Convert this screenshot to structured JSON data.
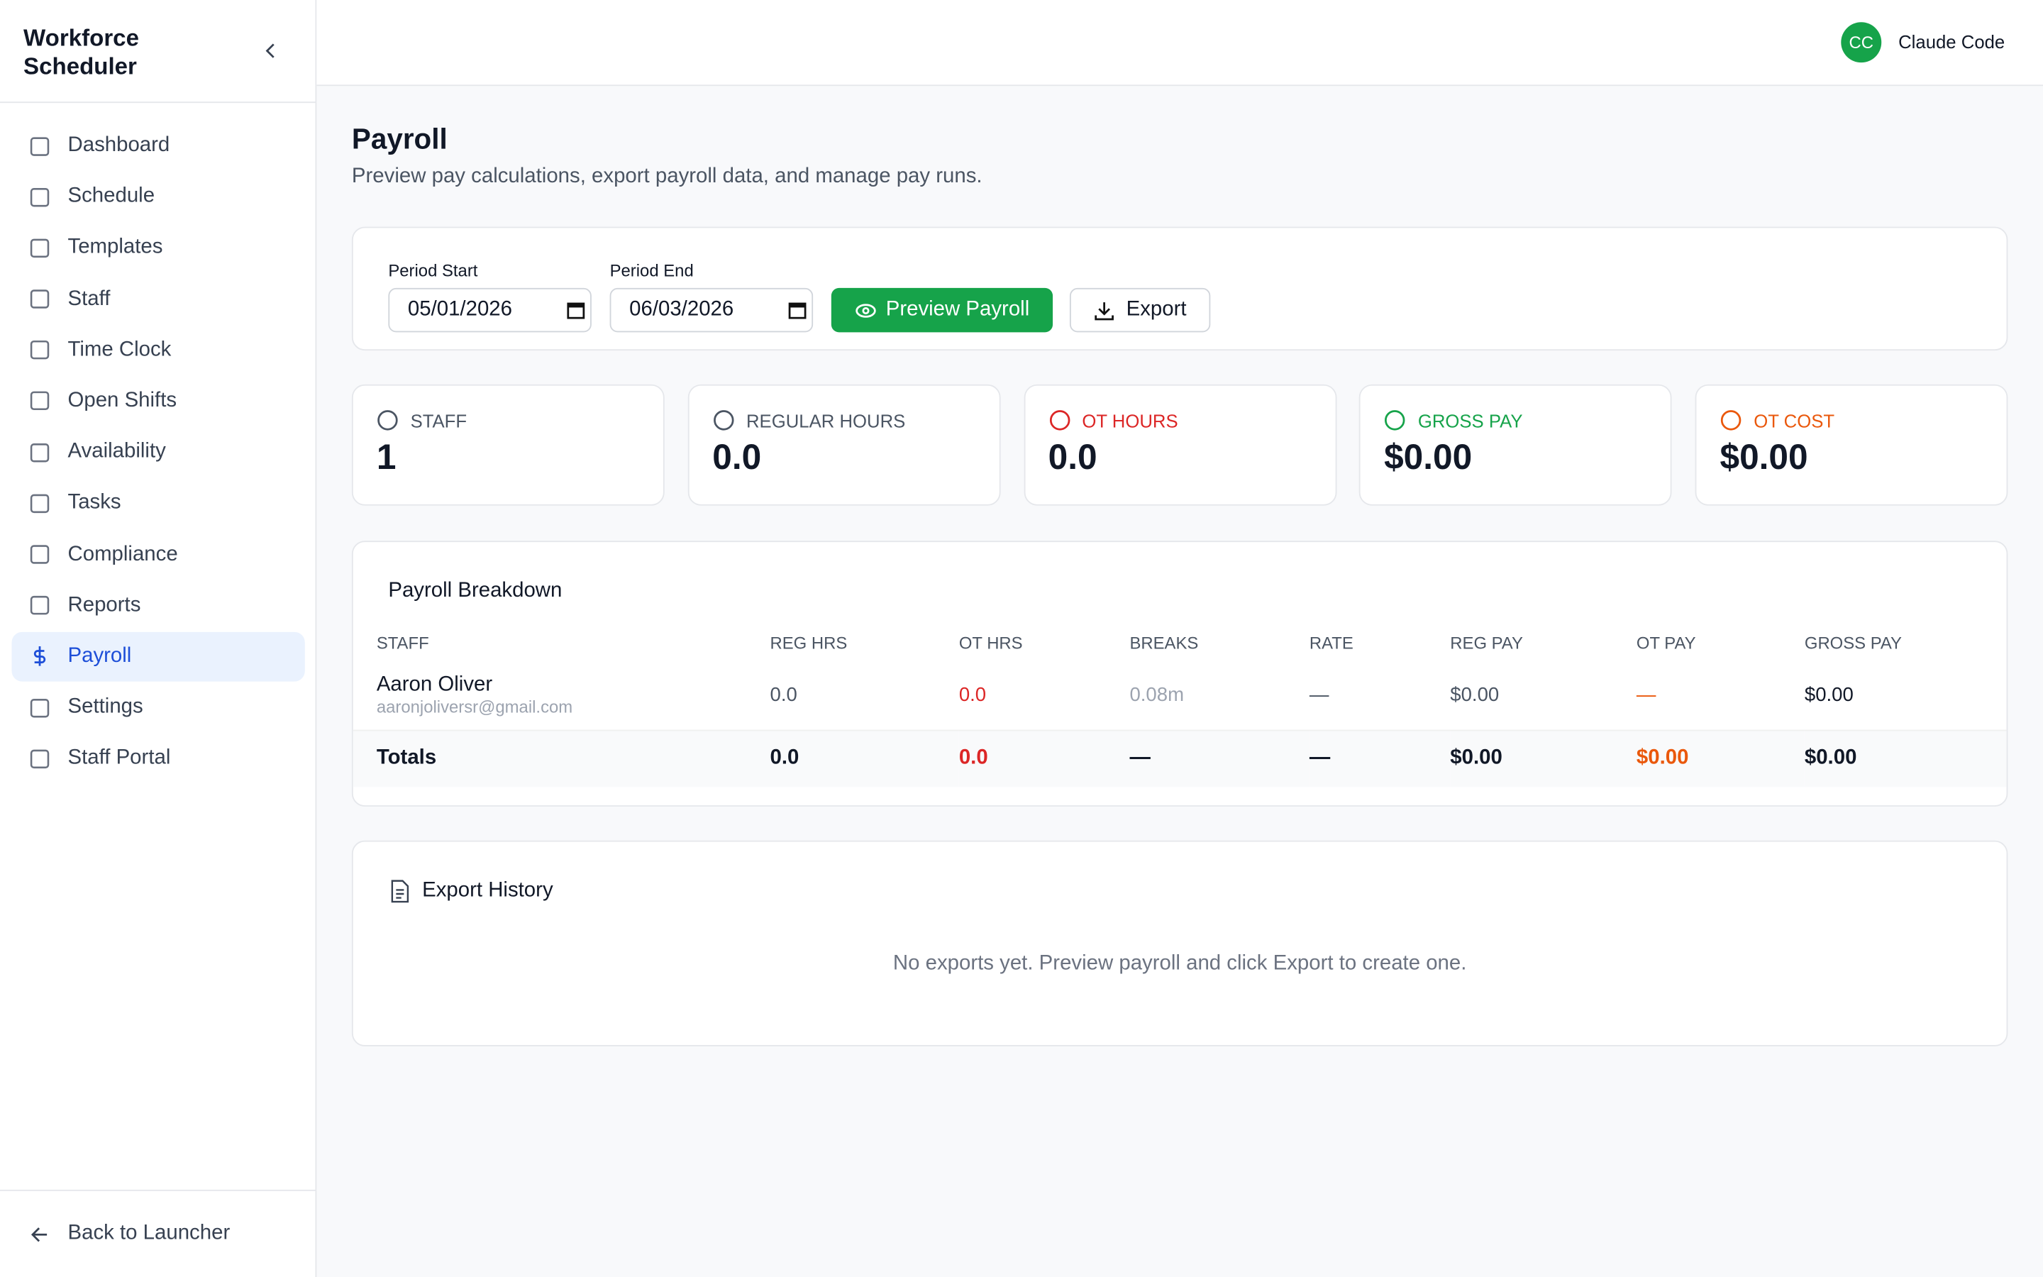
{
  "sidebar": {
    "title": "Workforce Scheduler",
    "nav": [
      "Dashboard",
      "Schedule",
      "Templates",
      "Staff",
      "Time Clock",
      "Open Shifts",
      "Availability",
      "Tasks",
      "Compliance",
      "Reports",
      "Payroll",
      "Settings",
      "Staff Portal"
    ],
    "footer": "Back to Launcher"
  },
  "header": {
    "avatar": "CC",
    "user": "Claude Code"
  },
  "page": {
    "title": "Payroll",
    "subtitle": "Preview pay calculations, export payroll data, and manage pay runs."
  },
  "filters": {
    "period_start_label": "Period Start",
    "period_start": "05/01/2026",
    "period_end_label": "Period End",
    "period_end": "06/03/2026",
    "preview_button": "Preview Payroll",
    "export_button": "Export"
  },
  "stats": [
    {
      "label": "STAFF",
      "value": "1"
    },
    {
      "label": "REGULAR HOURS",
      "value": "0.0"
    },
    {
      "label": "OT HOURS",
      "value": "0.0"
    },
    {
      "label": "GROSS PAY",
      "value": "$0.00"
    },
    {
      "label": "OT COST",
      "value": "$0.00"
    }
  ],
  "breakdown": {
    "title": "Payroll Breakdown",
    "columns": [
      "STAFF",
      "REG HRS",
      "OT HRS",
      "BREAKS",
      "RATE",
      "REG PAY",
      "OT PAY",
      "GROSS PAY"
    ],
    "rows": [
      {
        "name": "Aaron Oliver",
        "email": "aaronjoliversr@gmail.com",
        "cells": [
          "0.0",
          "0.0",
          "0.08m",
          "—",
          "$0.00",
          "—",
          "$0.00"
        ]
      }
    ],
    "totals": [
      "Totals",
      "0.0",
      "0.0",
      "—",
      "—",
      "$0.00",
      "$0.00",
      "$0.00"
    ]
  },
  "export_history": {
    "title": "Export History",
    "empty": "No exports yet. Preview payroll and click Export to create one."
  }
}
